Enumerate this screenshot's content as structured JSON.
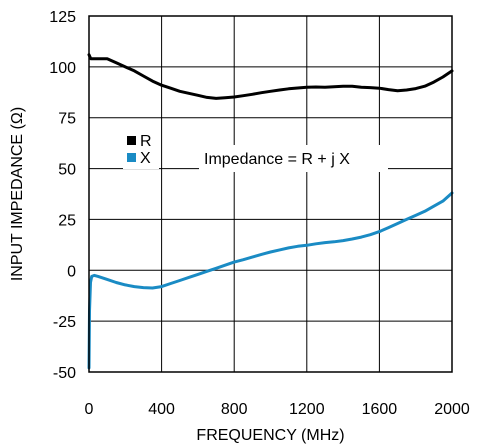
{
  "chart_data": {
    "type": "line",
    "xlabel": "FREQUENCY (MHz)",
    "ylabel": "INPUT IMPEDANCE (Ω)",
    "xlim": [
      0,
      2000
    ],
    "ylim": [
      -50,
      125
    ],
    "x_ticks": [
      0,
      400,
      800,
      1200,
      1600,
      2000
    ],
    "y_ticks": [
      -50,
      -25,
      0,
      25,
      50,
      75,
      100,
      125
    ],
    "grid": true,
    "legend_position": "left-middle",
    "annotation": "Impedance = R + j X",
    "series": [
      {
        "name": "R",
        "color": "#000000",
        "x": [
          0,
          10,
          50,
          100,
          150,
          200,
          250,
          300,
          350,
          400,
          450,
          500,
          550,
          600,
          650,
          700,
          750,
          800,
          850,
          900,
          950,
          1000,
          1050,
          1100,
          1150,
          1200,
          1250,
          1300,
          1350,
          1400,
          1450,
          1500,
          1550,
          1600,
          1650,
          1700,
          1750,
          1800,
          1850,
          1900,
          1950,
          2000
        ],
        "values": [
          106,
          104,
          104,
          104,
          102,
          100,
          98,
          95.5,
          93,
          91,
          89.5,
          88,
          87,
          86,
          85,
          84.5,
          84.8,
          85.2,
          85.8,
          86.5,
          87.3,
          88,
          88.6,
          89.2,
          89.6,
          90,
          90.1,
          90,
          90.2,
          90.5,
          90.5,
          90,
          89.8,
          89.5,
          88.8,
          88.3,
          88.6,
          89.3,
          90.5,
          92.5,
          95,
          98
        ]
      },
      {
        "name": "X",
        "color": "#1a8bc4",
        "x": [
          0,
          3,
          8,
          15,
          30,
          50,
          100,
          150,
          200,
          250,
          300,
          350,
          400,
          450,
          500,
          550,
          600,
          650,
          700,
          750,
          800,
          850,
          900,
          950,
          1000,
          1050,
          1100,
          1150,
          1200,
          1250,
          1300,
          1350,
          1400,
          1450,
          1500,
          1550,
          1600,
          1650,
          1700,
          1750,
          1800,
          1850,
          1900,
          1950,
          2000
        ],
        "values": [
          -48,
          -20,
          -6,
          -3,
          -2.5,
          -3,
          -4.5,
          -6,
          -7.2,
          -8,
          -8.5,
          -8.7,
          -8,
          -6.5,
          -5,
          -3.5,
          -2,
          -0.5,
          1,
          2.5,
          4,
          5.2,
          6.5,
          7.8,
          9,
          10,
          11,
          11.8,
          12.3,
          13,
          13.6,
          14,
          14.6,
          15.4,
          16.3,
          17.5,
          19,
          21,
          23,
          25,
          27,
          29,
          31.5,
          34,
          38
        ]
      }
    ]
  }
}
